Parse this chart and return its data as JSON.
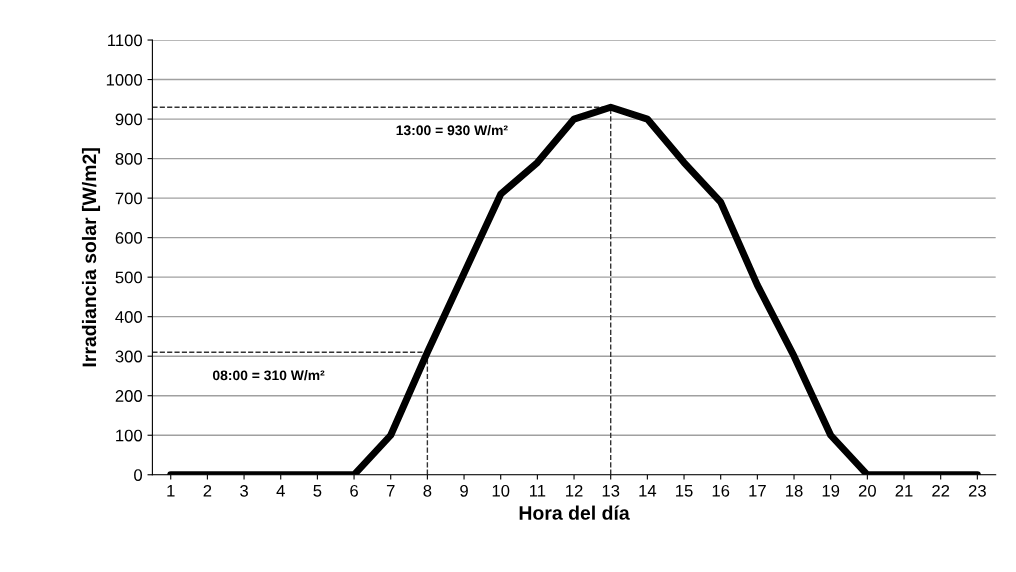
{
  "chart_data": {
    "type": "line",
    "xlabel": "Hora del día",
    "ylabel": "Irradiancia solar [W/m2]",
    "categories": [
      "1",
      "2",
      "3",
      "4",
      "5",
      "6",
      "7",
      "8",
      "9",
      "10",
      "11",
      "12",
      "13",
      "14",
      "15",
      "16",
      "17",
      "18",
      "19",
      "20",
      "21",
      "22",
      "23"
    ],
    "series": [
      {
        "color": "#000000",
        "values": [
          0,
          0,
          0,
          0,
          0,
          0,
          100,
          310,
          510,
          710,
          790,
          900,
          930,
          900,
          790,
          690,
          480,
          300,
          100,
          0,
          0,
          0,
          0
        ]
      }
    ],
    "ylim": [
      0,
      1100
    ],
    "yticks": [
      0,
      100,
      200,
      300,
      400,
      500,
      600,
      700,
      800,
      900,
      1000,
      1100
    ],
    "grid": "y",
    "legend": false,
    "marker": "none",
    "line_style": "solid",
    "ref_lines": [
      {
        "axis": "y",
        "value": 930,
        "label": "13:00 = 930 W/m²",
        "color": "#333333",
        "line_style": "dashed"
      },
      {
        "axis": "x",
        "value": "13",
        "color": "#333333",
        "line_style": "dashed"
      },
      {
        "axis": "y",
        "value": 310,
        "label": "08:00 = 310 W/m²",
        "color": "#333333",
        "line_style": "dashed"
      },
      {
        "axis": "x",
        "value": "8",
        "color": "#333333",
        "line_style": "dashed"
      }
    ]
  }
}
